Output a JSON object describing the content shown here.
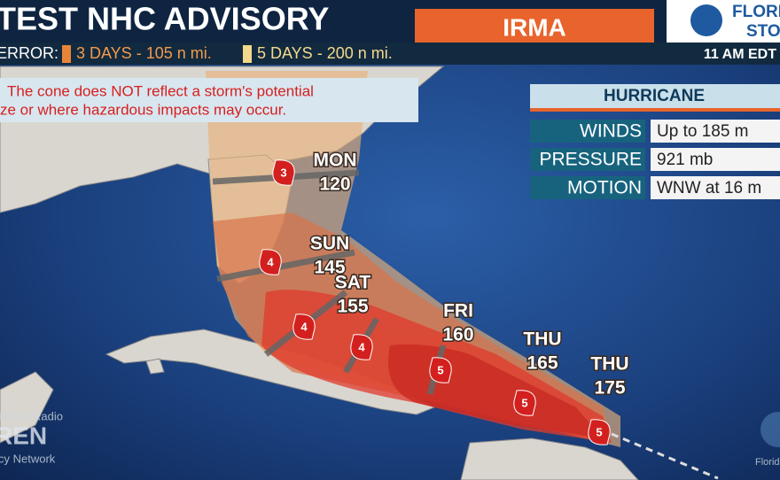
{
  "header": {
    "title": "TEST NHC ADVISORY",
    "storm": "IRMA",
    "logo": [
      "FLORI",
      "STO"
    ]
  },
  "error_bar": {
    "label": "ERROR:",
    "three_day": "3 DAYS - 105 n mi.",
    "five_day": "5 DAYS - 200 n mi.",
    "time": "11 AM EDT"
  },
  "warning": [
    "The cone does NOT reflect a storm's potential",
    "ze or where hazardous impacts may occur."
  ],
  "info": {
    "title": "HURRICANE",
    "rows": [
      [
        "WINDS",
        "Up to 185 m"
      ],
      [
        "PRESSURE",
        "921 mb"
      ],
      [
        "MOTION",
        "WNW at 16 m"
      ]
    ]
  },
  "forecast": [
    {
      "day": "MON",
      "wind": "120",
      "category": "3"
    },
    {
      "day": "SUN",
      "wind": "145",
      "category": "4"
    },
    {
      "day": "SAT",
      "wind": "155",
      "category": "4"
    },
    {
      "category": "4"
    },
    {
      "day": "FRI",
      "wind": "160",
      "category": "5"
    },
    {
      "day": "THU",
      "wind": "165",
      "category": "5"
    },
    {
      "day": "THU",
      "wind": "175",
      "category": "5"
    }
  ],
  "watermark": {
    "left": [
      "Public Radio",
      "REN",
      "cy Network"
    ],
    "right": "Florid"
  }
}
